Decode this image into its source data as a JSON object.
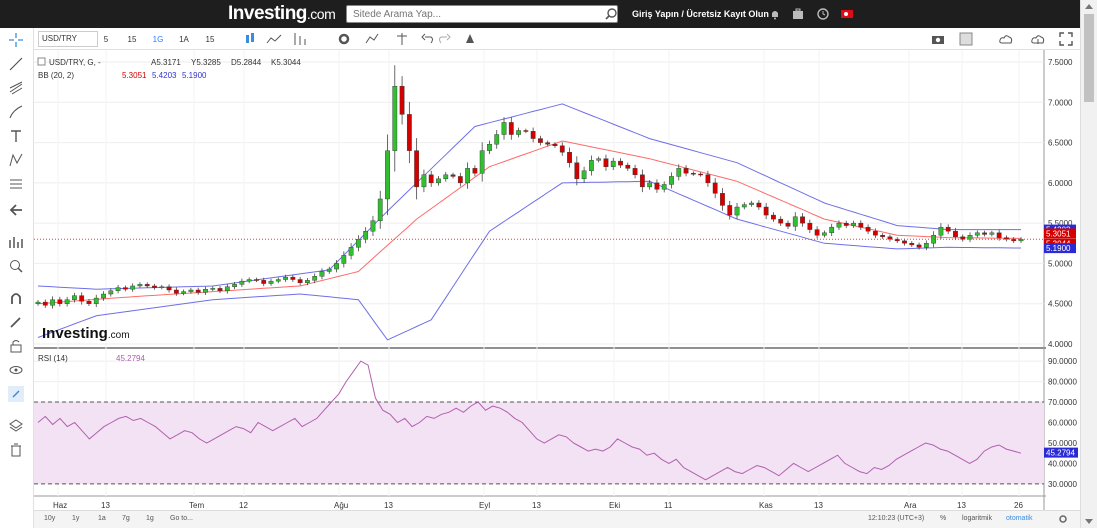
{
  "topbar": {
    "logo_text": "Investing",
    "logo_suffix": ".com",
    "search_placeholder": "Sitede Arama Yap...",
    "login_text": "Giriş Yapın / Ücretsiz Kayıt Olun",
    "icons": [
      "bell-icon",
      "briefcase-icon",
      "clock-icon",
      "flag-icon"
    ]
  },
  "toolbar": {
    "symbol": "USD/TRY",
    "intervals": [
      {
        "label": "5",
        "selected": false
      },
      {
        "label": "15",
        "selected": false
      },
      {
        "label": "1G",
        "selected": true
      },
      {
        "label": "1A",
        "selected": false
      },
      {
        "label": "15",
        "selected": false
      }
    ]
  },
  "legend": {
    "main": "USD/TRY, G, -",
    "ohlc": [
      "A5.3171",
      "Y5.3285",
      "D5.2844",
      "K5.3044"
    ],
    "bb_label": "BB (20, 2)",
    "bb_values": [
      "5.3051",
      "5.4203",
      "5.1900"
    ],
    "rsi_label": "RSI (14)",
    "rsi_value": "45.2794",
    "watermark": "Investing",
    "watermark_suffix": ".com"
  },
  "colors": {
    "up": "#2fbf2f",
    "down": "#d40000",
    "bb_mid": "#ff6b6b",
    "bb_band": "#6f6fe8",
    "rsi": "#b060b0",
    "rsi_fill": "#f3e2f3"
  },
  "price_labels": {
    "upper": "5.4203",
    "mid": "5.3051",
    "close": "5.3044",
    "lower": "5.1900"
  },
  "chart_data": {
    "type": "candlestick",
    "y_ticks": [
      "7.5000",
      "7.0000",
      "6.5000",
      "6.0000",
      "5.5000",
      "5.0000",
      "4.5000",
      "4.0000"
    ],
    "rsi_ticks": [
      "90.0000",
      "80.0000",
      "70.0000",
      "60.0000",
      "50.0000",
      "40.0000",
      "30.0000"
    ],
    "ylim": [
      3.95,
      7.55
    ],
    "rsi_ylim": [
      27,
      93
    ],
    "x_labels": [
      "Haz",
      "13",
      "Tem",
      "12",
      "Ağu",
      "13",
      "Eyl",
      "13",
      "Eki",
      "11",
      "Kas",
      "13",
      "Ara",
      "13",
      "26"
    ],
    "close": [
      4.52,
      4.48,
      4.55,
      4.5,
      4.55,
      4.6,
      4.53,
      4.5,
      4.57,
      4.62,
      4.66,
      4.7,
      4.68,
      4.72,
      4.74,
      4.72,
      4.7,
      4.71,
      4.67,
      4.63,
      4.65,
      4.67,
      4.64,
      4.68,
      4.69,
      4.66,
      4.71,
      4.74,
      4.78,
      4.8,
      4.79,
      4.75,
      4.78,
      4.8,
      4.83,
      4.8,
      4.76,
      4.79,
      4.84,
      4.9,
      4.93,
      5.0,
      5.1,
      5.2,
      5.3,
      5.4,
      5.53,
      5.8,
      6.4,
      7.2,
      6.85,
      6.4,
      5.95,
      6.1,
      6.0,
      6.05,
      6.1,
      6.08,
      6.0,
      6.18,
      6.12,
      6.4,
      6.48,
      6.6,
      6.75,
      6.6,
      6.65,
      6.64,
      6.55,
      6.5,
      6.48,
      6.46,
      6.38,
      6.25,
      6.05,
      6.15,
      6.28,
      6.3,
      6.2,
      6.27,
      6.22,
      6.18,
      6.1,
      5.95,
      6.0,
      5.92,
      5.98,
      6.08,
      6.18,
      6.12,
      6.11,
      6.1,
      6.0,
      5.87,
      5.72,
      5.6,
      5.7,
      5.73,
      5.75,
      5.7,
      5.6,
      5.55,
      5.5,
      5.46,
      5.58,
      5.5,
      5.42,
      5.35,
      5.38,
      5.45,
      5.5,
      5.47,
      5.5,
      5.45,
      5.4,
      5.35,
      5.33,
      5.3,
      5.28,
      5.25,
      5.23,
      5.2,
      5.25,
      5.35,
      5.45,
      5.4,
      5.33,
      5.3,
      5.35,
      5.38,
      5.36,
      5.38,
      5.32,
      5.3,
      5.28,
      5.3
    ],
    "bb_upper_pts": [
      [
        0,
        4.72
      ],
      [
        8,
        4.68
      ],
      [
        24,
        4.72
      ],
      [
        40,
        4.92
      ],
      [
        48,
        5.65
      ],
      [
        60,
        6.7
      ],
      [
        72,
        6.98
      ],
      [
        84,
        6.55
      ],
      [
        96,
        6.25
      ],
      [
        108,
        5.75
      ],
      [
        118,
        5.47
      ],
      [
        125,
        5.42
      ],
      [
        136,
        5.42
      ]
    ],
    "bb_mid_pts": [
      [
        0,
        4.5
      ],
      [
        12,
        4.58
      ],
      [
        24,
        4.65
      ],
      [
        36,
        4.72
      ],
      [
        44,
        4.9
      ],
      [
        52,
        5.55
      ],
      [
        62,
        6.2
      ],
      [
        72,
        6.52
      ],
      [
        84,
        6.3
      ],
      [
        96,
        6.02
      ],
      [
        108,
        5.55
      ],
      [
        118,
        5.35
      ],
      [
        125,
        5.32
      ],
      [
        136,
        5.31
      ]
    ],
    "bb_lower_pts": [
      [
        0,
        4.08
      ],
      [
        8,
        4.35
      ],
      [
        24,
        4.55
      ],
      [
        36,
        4.62
      ],
      [
        44,
        4.55
      ],
      [
        48,
        4.05
      ],
      [
        54,
        4.3
      ],
      [
        62,
        5.4
      ],
      [
        72,
        6.0
      ],
      [
        84,
        6.02
      ],
      [
        96,
        5.55
      ],
      [
        108,
        5.25
      ],
      [
        118,
        5.18
      ],
      [
        125,
        5.2
      ],
      [
        136,
        5.19
      ]
    ],
    "rsi": [
      60,
      63,
      59,
      62,
      58,
      60,
      56,
      52,
      55,
      58,
      60,
      62,
      63,
      61,
      62,
      60,
      58,
      55,
      52,
      54,
      56,
      55,
      52,
      50,
      52,
      54,
      56,
      58,
      57,
      55,
      60,
      58,
      56,
      58,
      60,
      62,
      58,
      60,
      62,
      66,
      70,
      74,
      80,
      85,
      90,
      88,
      72,
      66,
      64,
      60,
      62,
      58,
      60,
      63,
      62,
      64,
      65,
      67,
      65,
      68,
      70,
      66,
      68,
      67,
      65,
      62,
      60,
      56,
      52,
      50,
      52,
      54,
      53,
      50,
      48,
      46,
      47,
      46,
      48,
      52,
      50,
      48,
      47,
      44,
      45,
      42,
      40,
      42,
      38,
      36,
      34,
      32,
      34,
      36,
      38,
      36,
      35,
      37,
      39,
      38,
      36,
      34,
      37,
      40,
      38,
      36,
      38,
      40,
      42,
      44,
      40,
      38,
      36,
      35,
      38,
      37,
      39,
      42,
      44,
      46,
      48,
      50,
      49,
      47,
      46,
      44,
      42,
      40,
      42,
      46,
      48,
      49,
      47,
      46,
      45
    ]
  },
  "bottom": {
    "ranges": [
      "10y",
      "1y",
      "1a",
      "7g",
      "1g",
      "Go to..."
    ],
    "time": "12:10:23 (UTC+3)",
    "opts": [
      "%",
      "logaritmik",
      "otomatik"
    ]
  }
}
